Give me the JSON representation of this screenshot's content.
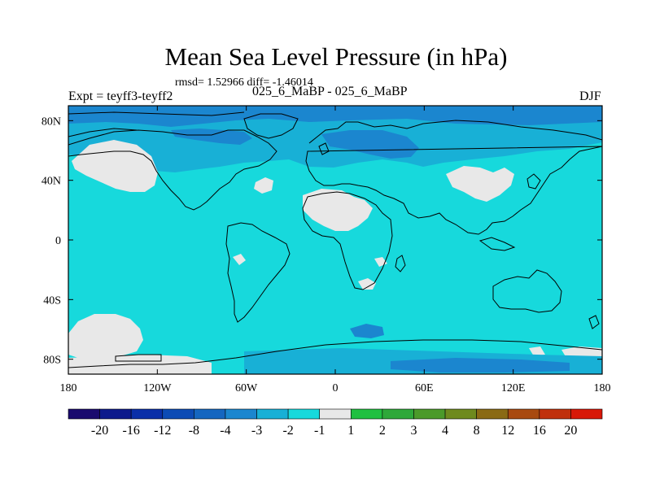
{
  "title": "Mean Sea Level Pressure (in hPa)",
  "stats": "rmsd= 1.52966 diff= -1.46014",
  "left_label": "Expt = teyff3-teyff2",
  "center_label": "025_6_MaBP - 025_6_MaBP",
  "season": "DJF",
  "map": {
    "projection": "cylindrical equidistant",
    "lon_range": [
      -180,
      180
    ],
    "lat_range": [
      -90,
      90
    ],
    "lon_ticks": [
      {
        "value": -180,
        "label": "180"
      },
      {
        "value": -120,
        "label": "120W"
      },
      {
        "value": -60,
        "label": "60W"
      },
      {
        "value": 0,
        "label": "0"
      },
      {
        "value": 60,
        "label": "60E"
      },
      {
        "value": 120,
        "label": "120E"
      },
      {
        "value": 180,
        "label": "180"
      }
    ],
    "lat_ticks": [
      {
        "value": 80,
        "label": "80N"
      },
      {
        "value": 40,
        "label": "40N"
      },
      {
        "value": 0,
        "label": "0"
      },
      {
        "value": -40,
        "label": "40S"
      },
      {
        "value": -80,
        "label": "80S"
      }
    ]
  },
  "colorbar": {
    "labels": [
      "-20",
      "-16",
      "-12",
      "-8",
      "-4",
      "-3",
      "-2",
      "-1",
      "1",
      "2",
      "3",
      "4",
      "8",
      "12",
      "16",
      "20"
    ],
    "colors": [
      "#1a0a6e",
      "#0d1a8c",
      "#0a2fa8",
      "#0c4bb5",
      "#1566c0",
      "#1b86cf",
      "#18b0d6",
      "#17d9dc",
      "#e8e8e8",
      "#20c040",
      "#2ea83a",
      "#4b9a2a",
      "#6e8a1e",
      "#8a6a14",
      "#a84a10",
      "#c0300c",
      "#d81808"
    ]
  },
  "field_colors": {
    "dominant": "#17d9dc",
    "moderate": "#18b0d6",
    "strong": "#1b86cf",
    "near_zero": "#e8e8e8"
  }
}
